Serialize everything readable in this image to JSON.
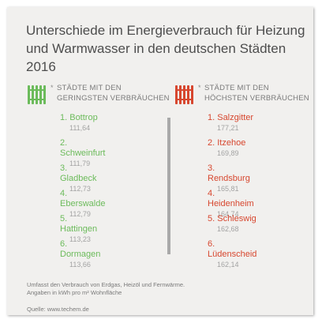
{
  "title_line1": "Unterschiede im Energieverbrauch für Heizung",
  "title_line2": "und Warmwasser in den deutschen Städten 2016",
  "colors": {
    "low": "#6cbb5b",
    "high": "#d7472f",
    "text": "#4d4d4d"
  },
  "left": {
    "icon": "radiator-icon",
    "asterisk": "*",
    "heading_line1": "STÄDTE MIT DEN",
    "heading_line2": "GERINGSTEN VERBRÄUCHEN",
    "items": [
      {
        "name": "1. Bottrop",
        "value": "111,64"
      },
      {
        "name": "2. Schweinfurt",
        "value": "111,79"
      },
      {
        "name": "3. Gladbeck",
        "value": "112,73"
      },
      {
        "name": "4. Eberswalde",
        "value": "112,79"
      },
      {
        "name": "5. Hattingen",
        "value": "113,23"
      },
      {
        "name": "6. Dormagen",
        "value": "113,66"
      }
    ]
  },
  "right": {
    "icon": "radiator-icon",
    "asterisk": "*",
    "heading_line1": "STÄDTE MIT DEN",
    "heading_line2": "HÖCHSTEN VERBRÄUCHEN",
    "items": [
      {
        "name": "1. Salzgitter",
        "value": "177,21"
      },
      {
        "name": "2. Itzehoe",
        "value": "169,89"
      },
      {
        "name": "3. Rendsburg",
        "value": "165,81"
      },
      {
        "name": "4. Heidenheim",
        "value": "164,74"
      },
      {
        "name": "5. Schleswig",
        "value": "162,68"
      },
      {
        "name": "6. Lüdenscheid",
        "value": "162,14"
      }
    ]
  },
  "note_line1": "Umfasst den Verbrauch von Erdgas, Heizöl und Fernwärme.",
  "note_line2": "Angaben in kWh pro m² Wohnfläche",
  "source": "Quelle: www.techem.de"
}
